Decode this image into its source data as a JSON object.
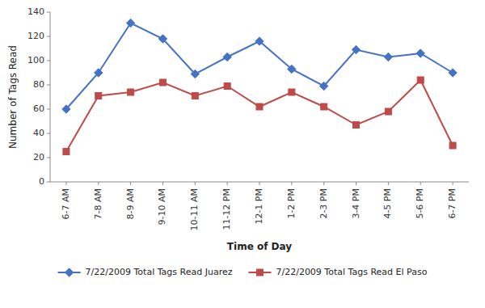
{
  "chart_data": {
    "type": "line",
    "xlabel": "Time of Day",
    "ylabel": "Number of Tags Read",
    "categories": [
      "6-7 AM",
      "7-8 AM",
      "8-9 AM",
      "9-10 AM",
      "10-11 AM",
      "11-12 PM",
      "12-1 PM",
      "1-2 PM",
      "2-3 PM",
      "3-4 PM",
      "4-5 PM",
      "5-6 PM",
      "6-7 PM"
    ],
    "series": [
      {
        "name": "7/22/2009 Total Tags Read Juarez",
        "color": "#4472C4",
        "marker": "diamond",
        "values": [
          60,
          90,
          131,
          118,
          89,
          103,
          116,
          93,
          79,
          109,
          103,
          106,
          90
        ]
      },
      {
        "name": "7/22/2009 Total Tags Read El Paso",
        "color": "#BE4B48",
        "marker": "square",
        "values": [
          25,
          71,
          74,
          82,
          71,
          79,
          62,
          74,
          62,
          47,
          58,
          84,
          30
        ]
      }
    ],
    "ylim": [
      0,
      140
    ],
    "yticks": [
      0,
      20,
      40,
      60,
      80,
      100,
      120,
      140
    ],
    "grid": false,
    "legend": "bottom"
  }
}
